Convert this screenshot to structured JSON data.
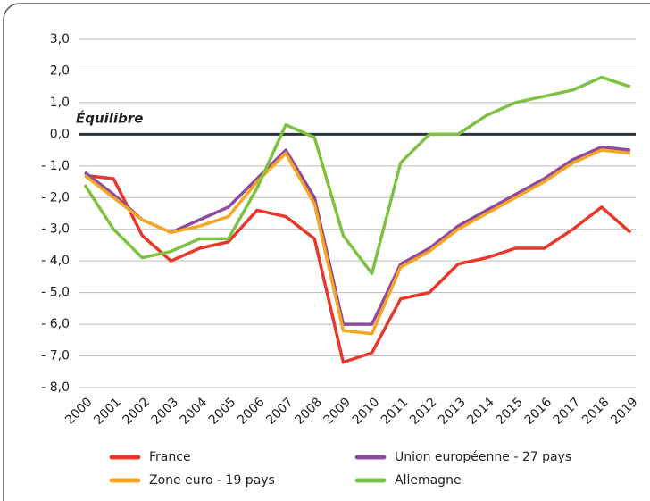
{
  "chart_data": {
    "type": "line",
    "annotation": "Équilibre",
    "categories": [
      "2000",
      "2001",
      "2002",
      "2003",
      "2004",
      "2005",
      "2006",
      "2007",
      "2008",
      "2009",
      "2010",
      "2011",
      "2012",
      "2013",
      "2014",
      "2015",
      "2016",
      "2017",
      "2018",
      "2019"
    ],
    "series": [
      {
        "name": "France",
        "color": "#e8372b",
        "values": [
          -1.3,
          -1.4,
          -3.2,
          -4.0,
          -3.6,
          -3.4,
          -2.4,
          -2.6,
          -3.3,
          -7.2,
          -6.9,
          -5.2,
          -5.0,
          -4.1,
          -3.9,
          -3.6,
          -3.6,
          -3.0,
          -2.3,
          -3.1
        ]
      },
      {
        "name": "Union européenne - 27 pays",
        "color": "#8e4c9e",
        "values": [
          -1.2,
          -1.9,
          -2.7,
          -3.1,
          -2.7,
          -2.3,
          -1.4,
          -0.5,
          -2.0,
          -6.0,
          -6.0,
          -4.1,
          -3.6,
          -2.9,
          -2.4,
          -1.9,
          -1.4,
          -0.8,
          -0.4,
          -0.5
        ]
      },
      {
        "name": "Zone euro - 19 pays",
        "color": "#f5a623",
        "values": [
          -1.3,
          -2.0,
          -2.7,
          -3.1,
          -2.9,
          -2.6,
          -1.5,
          -0.6,
          -2.2,
          -6.2,
          -6.3,
          -4.2,
          -3.7,
          -3.0,
          -2.5,
          -2.0,
          -1.5,
          -0.9,
          -0.5,
          -0.6
        ]
      },
      {
        "name": "Allemagne",
        "color": "#7dc242",
        "values": [
          -1.6,
          -3.0,
          -3.9,
          -3.7,
          -3.3,
          -3.3,
          -1.7,
          0.3,
          -0.1,
          -3.2,
          -4.4,
          -0.9,
          0.0,
          0.0,
          0.6,
          1.0,
          1.2,
          1.4,
          1.8,
          1.5
        ]
      }
    ],
    "ylim": [
      -8,
      3
    ],
    "yticks": [
      {
        "value": 3,
        "label": "3,0"
      },
      {
        "value": 2,
        "label": "2,0"
      },
      {
        "value": 1,
        "label": "1,0"
      },
      {
        "value": 0,
        "label": "0,0"
      },
      {
        "value": -1,
        "label": "- 1,0"
      },
      {
        "value": -2,
        "label": "- 2,0"
      },
      {
        "value": -3,
        "label": "- 3,0"
      },
      {
        "value": -4,
        "label": "- 4,0"
      },
      {
        "value": -5,
        "label": "- 5,0"
      },
      {
        "value": -6,
        "label": "- 6,0"
      },
      {
        "value": -7,
        "label": "- 7,0"
      },
      {
        "value": -8,
        "label": "- 8,0"
      }
    ],
    "grid": true
  }
}
